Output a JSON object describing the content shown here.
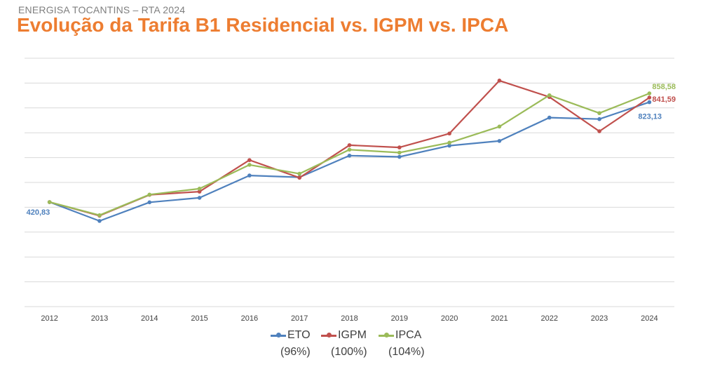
{
  "header": {
    "subtitle": "ENERGISA TOCANTINS – RTA 2024",
    "title": "Evolução da Tarifa B1 Residencial vs. IGPM vs. IPCA"
  },
  "legend": {
    "eto": {
      "name": "ETO",
      "pct": "(96%)"
    },
    "igpm": {
      "name": "IGPM",
      "pct": "(100%)"
    },
    "ipca": {
      "name": "IPCA",
      "pct": "(104%)"
    }
  },
  "chart_data": {
    "type": "line",
    "title": "Evolução da Tarifa B1 Residencial vs. IGPM vs. IPCA",
    "xlabel": "",
    "ylabel": "",
    "grid": true,
    "legend_position": "bottom",
    "ylim": [
      0,
      1000
    ],
    "x": [
      "2012",
      "2013",
      "2014",
      "2015",
      "2016",
      "2017",
      "2018",
      "2019",
      "2020",
      "2021",
      "2022",
      "2023",
      "2024"
    ],
    "series": [
      {
        "name": "ETO",
        "color": "#4f81bd",
        "values": [
          420.83,
          345,
          420,
          438,
          528,
          521,
          608,
          603,
          648,
          667,
          761,
          755,
          823.13
        ],
        "end_label": "823,13",
        "start_label": "420,83"
      },
      {
        "name": "IGPM",
        "color": "#c0504d",
        "values": [
          420.83,
          366,
          450,
          463,
          590,
          519,
          650,
          641,
          697,
          910,
          844,
          706,
          841.59
        ],
        "end_label": "841,59"
      },
      {
        "name": "IPCA",
        "color": "#9bbb59",
        "values": [
          420.83,
          368,
          451,
          475,
          571,
          535,
          632,
          620,
          660,
          725,
          851,
          779,
          858.58
        ],
        "end_label": "858,58"
      }
    ]
  }
}
